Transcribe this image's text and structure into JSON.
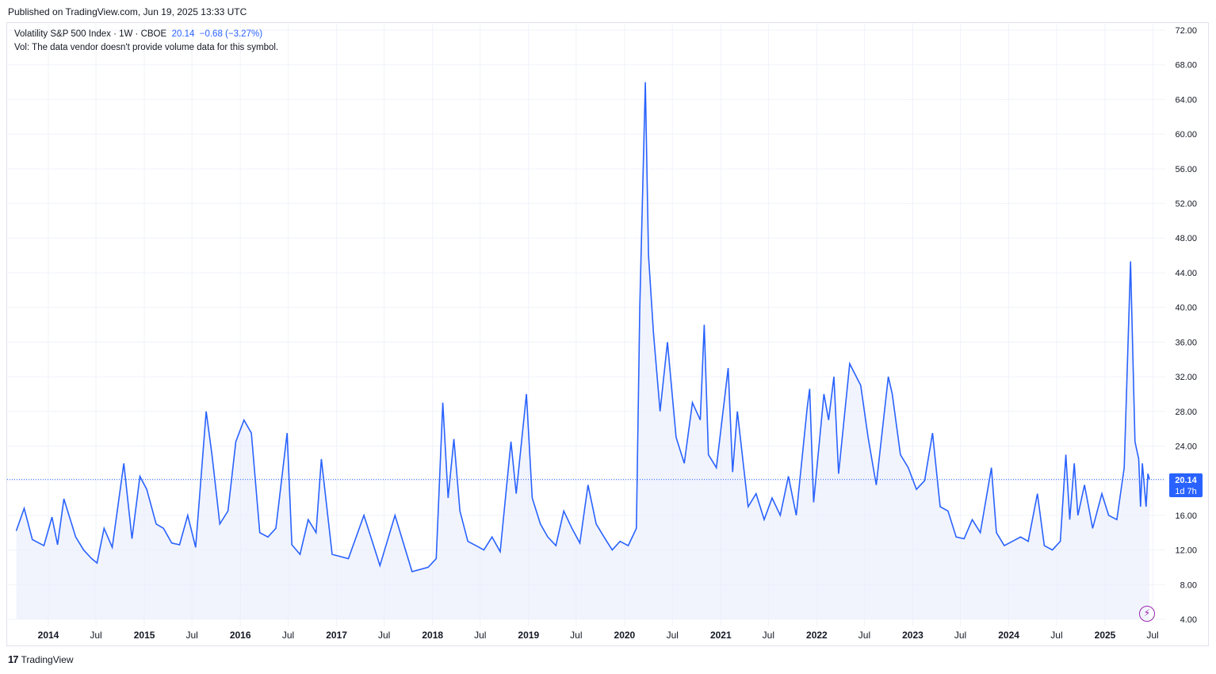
{
  "header": {
    "published": "Published on TradingView.com, Jun 19, 2025 13:33 UTC"
  },
  "legend": {
    "symbol": "Volatility S&P 500 Index · 1W · CBOE",
    "value": "20.14",
    "change": "−0.68 (−3.27%)",
    "vol_note": "Vol: The data vendor doesn't provide volume data for this symbol."
  },
  "price_label": {
    "value": "20.14",
    "countdown": "1d 7h"
  },
  "footer": {
    "logo": "TradingView"
  },
  "colors": {
    "line": "#2962ff",
    "fill": "#e8edfc",
    "label_bg": "#2962ff",
    "flash": "#9c27b0"
  },
  "icons": {
    "flash": "lightning-icon",
    "logo": "tradingview-logo-icon"
  },
  "chart_data": {
    "type": "area",
    "series": [
      {
        "values": []
      }
    ],
    "x_ticks": [
      "2014",
      "Jul",
      "2015",
      "Jul",
      "2016",
      "Jul",
      "2017",
      "Jul",
      "2018",
      "Jul",
      "2019",
      "Jul",
      "2020",
      "Jul",
      "2021",
      "Jul",
      "2022",
      "Jul",
      "2023",
      "Jul",
      "2024",
      "Jul",
      "2025",
      "Jul"
    ],
    "y_ticks": [
      "72.00",
      "68.00",
      "64.00",
      "60.00",
      "56.00",
      "52.00",
      "48.00",
      "44.00",
      "40.00",
      "36.00",
      "32.00",
      "28.00",
      "24.00",
      "20.00",
      "16.00",
      "12.00",
      "8.00",
      "4.00"
    ],
    "ylim": [
      4,
      72
    ],
    "last_value": 20.14,
    "points": [
      [
        "2013-09-01",
        14.2
      ],
      [
        "2013-10-01",
        16.8
      ],
      [
        "2013-11-01",
        13.2
      ],
      [
        "2013-12-15",
        12.5
      ],
      [
        "2014-01-15",
        15.8
      ],
      [
        "2014-02-05",
        12.6
      ],
      [
        "2014-03-01",
        17.9
      ],
      [
        "2014-04-15",
        13.5
      ],
      [
        "2014-05-15",
        12.0
      ],
      [
        "2014-06-15",
        11.0
      ],
      [
        "2014-07-05",
        10.5
      ],
      [
        "2014-08-01",
        14.5
      ],
      [
        "2014-09-01",
        12.3
      ],
      [
        "2014-10-15",
        22.0
      ],
      [
        "2014-11-15",
        13.3
      ],
      [
        "2014-12-15",
        20.5
      ],
      [
        "2015-01-10",
        19.0
      ],
      [
        "2015-02-15",
        15.0
      ],
      [
        "2015-03-15",
        14.5
      ],
      [
        "2015-04-15",
        12.8
      ],
      [
        "2015-05-15",
        12.6
      ],
      [
        "2015-06-15",
        16.0
      ],
      [
        "2015-07-15",
        12.3
      ],
      [
        "2015-08-24",
        28.0
      ],
      [
        "2015-09-15",
        23.0
      ],
      [
        "2015-10-15",
        15.0
      ],
      [
        "2015-11-15",
        16.5
      ],
      [
        "2015-12-15",
        24.5
      ],
      [
        "2016-01-15",
        27.0
      ],
      [
        "2016-02-12",
        25.5
      ],
      [
        "2016-03-15",
        14.0
      ],
      [
        "2016-04-15",
        13.5
      ],
      [
        "2016-05-15",
        14.5
      ],
      [
        "2016-06-27",
        25.5
      ],
      [
        "2016-07-15",
        12.6
      ],
      [
        "2016-08-15",
        11.5
      ],
      [
        "2016-09-15",
        15.5
      ],
      [
        "2016-10-15",
        14.0
      ],
      [
        "2016-11-04",
        22.5
      ],
      [
        "2016-12-15",
        11.5
      ],
      [
        "2017-02-15",
        11.0
      ],
      [
        "2017-04-15",
        16.0
      ],
      [
        "2017-06-15",
        10.2
      ],
      [
        "2017-08-11",
        16.0
      ],
      [
        "2017-10-15",
        9.5
      ],
      [
        "2017-12-15",
        10.0
      ],
      [
        "2018-01-15",
        11.0
      ],
      [
        "2018-02-09",
        29.0
      ],
      [
        "2018-03-01",
        18.0
      ],
      [
        "2018-03-23",
        24.8
      ],
      [
        "2018-04-15",
        16.5
      ],
      [
        "2018-05-15",
        13.0
      ],
      [
        "2018-06-15",
        12.5
      ],
      [
        "2018-07-15",
        12.0
      ],
      [
        "2018-08-15",
        13.5
      ],
      [
        "2018-09-15",
        11.8
      ],
      [
        "2018-10-26",
        24.5
      ],
      [
        "2018-11-15",
        18.5
      ],
      [
        "2018-12-24",
        30.0
      ],
      [
        "2019-01-15",
        18.0
      ],
      [
        "2019-02-15",
        15.0
      ],
      [
        "2019-03-15",
        13.5
      ],
      [
        "2019-04-15",
        12.5
      ],
      [
        "2019-05-15",
        16.5
      ],
      [
        "2019-06-15",
        14.5
      ],
      [
        "2019-07-15",
        12.8
      ],
      [
        "2019-08-15",
        19.5
      ],
      [
        "2019-09-15",
        15.0
      ],
      [
        "2019-10-15",
        13.5
      ],
      [
        "2019-11-15",
        12.0
      ],
      [
        "2019-12-15",
        13.0
      ],
      [
        "2020-01-15",
        12.5
      ],
      [
        "2020-02-15",
        14.5
      ],
      [
        "2020-02-28",
        40.0
      ],
      [
        "2020-03-20",
        66.0
      ],
      [
        "2020-04-01",
        46.0
      ],
      [
        "2020-04-20",
        37.0
      ],
      [
        "2020-05-15",
        28.0
      ],
      [
        "2020-06-12",
        36.0
      ],
      [
        "2020-07-15",
        25.0
      ],
      [
        "2020-08-15",
        22.0
      ],
      [
        "2020-09-15",
        29.0
      ],
      [
        "2020-10-15",
        27.0
      ],
      [
        "2020-10-30",
        38.0
      ],
      [
        "2020-11-15",
        23.0
      ],
      [
        "2020-12-15",
        21.5
      ],
      [
        "2021-01-29",
        33.0
      ],
      [
        "2021-02-15",
        21.0
      ],
      [
        "2021-03-05",
        28.0
      ],
      [
        "2021-04-15",
        17.0
      ],
      [
        "2021-05-15",
        18.5
      ],
      [
        "2021-06-15",
        15.5
      ],
      [
        "2021-07-15",
        18.0
      ],
      [
        "2021-08-15",
        16.0
      ],
      [
        "2021-09-15",
        20.5
      ],
      [
        "2021-10-15",
        16.0
      ],
      [
        "2021-11-26",
        28.6
      ],
      [
        "2021-12-05",
        30.6
      ],
      [
        "2021-12-20",
        17.5
      ],
      [
        "2022-01-28",
        30.0
      ],
      [
        "2022-02-15",
        27.0
      ],
      [
        "2022-03-07",
        32.0
      ],
      [
        "2022-03-25",
        20.8
      ],
      [
        "2022-05-06",
        33.5
      ],
      [
        "2022-06-17",
        31.0
      ],
      [
        "2022-07-15",
        25.0
      ],
      [
        "2022-08-15",
        19.5
      ],
      [
        "2022-09-30",
        32.0
      ],
      [
        "2022-10-15",
        30.0
      ],
      [
        "2022-11-15",
        23.0
      ],
      [
        "2022-12-15",
        21.5
      ],
      [
        "2023-01-15",
        19.0
      ],
      [
        "2023-02-15",
        20.0
      ],
      [
        "2023-03-17",
        25.5
      ],
      [
        "2023-04-15",
        17.0
      ],
      [
        "2023-05-15",
        16.5
      ],
      [
        "2023-06-15",
        13.5
      ],
      [
        "2023-07-15",
        13.3
      ],
      [
        "2023-08-15",
        15.5
      ],
      [
        "2023-09-15",
        14.0
      ],
      [
        "2023-10-27",
        21.5
      ],
      [
        "2023-11-15",
        14.0
      ],
      [
        "2023-12-15",
        12.5
      ],
      [
        "2024-01-15",
        13.0
      ],
      [
        "2024-02-15",
        13.5
      ],
      [
        "2024-03-15",
        13.0
      ],
      [
        "2024-04-19",
        18.5
      ],
      [
        "2024-05-15",
        12.5
      ],
      [
        "2024-06-15",
        12.0
      ],
      [
        "2024-07-15",
        13.0
      ],
      [
        "2024-08-05",
        23.0
      ],
      [
        "2024-08-20",
        15.5
      ],
      [
        "2024-09-06",
        22.0
      ],
      [
        "2024-09-20",
        16.0
      ],
      [
        "2024-10-15",
        19.5
      ],
      [
        "2024-11-15",
        14.5
      ],
      [
        "2024-12-20",
        18.5
      ],
      [
        "2025-01-15",
        16.0
      ],
      [
        "2025-02-15",
        15.5
      ],
      [
        "2025-03-15",
        21.5
      ],
      [
        "2025-04-08",
        45.3
      ],
      [
        "2025-04-25",
        24.5
      ],
      [
        "2025-05-09",
        22.5
      ],
      [
        "2025-05-16",
        17.0
      ],
      [
        "2025-05-23",
        22.0
      ],
      [
        "2025-06-06",
        17.0
      ],
      [
        "2025-06-13",
        20.8
      ],
      [
        "2025-06-19",
        20.14
      ]
    ]
  }
}
